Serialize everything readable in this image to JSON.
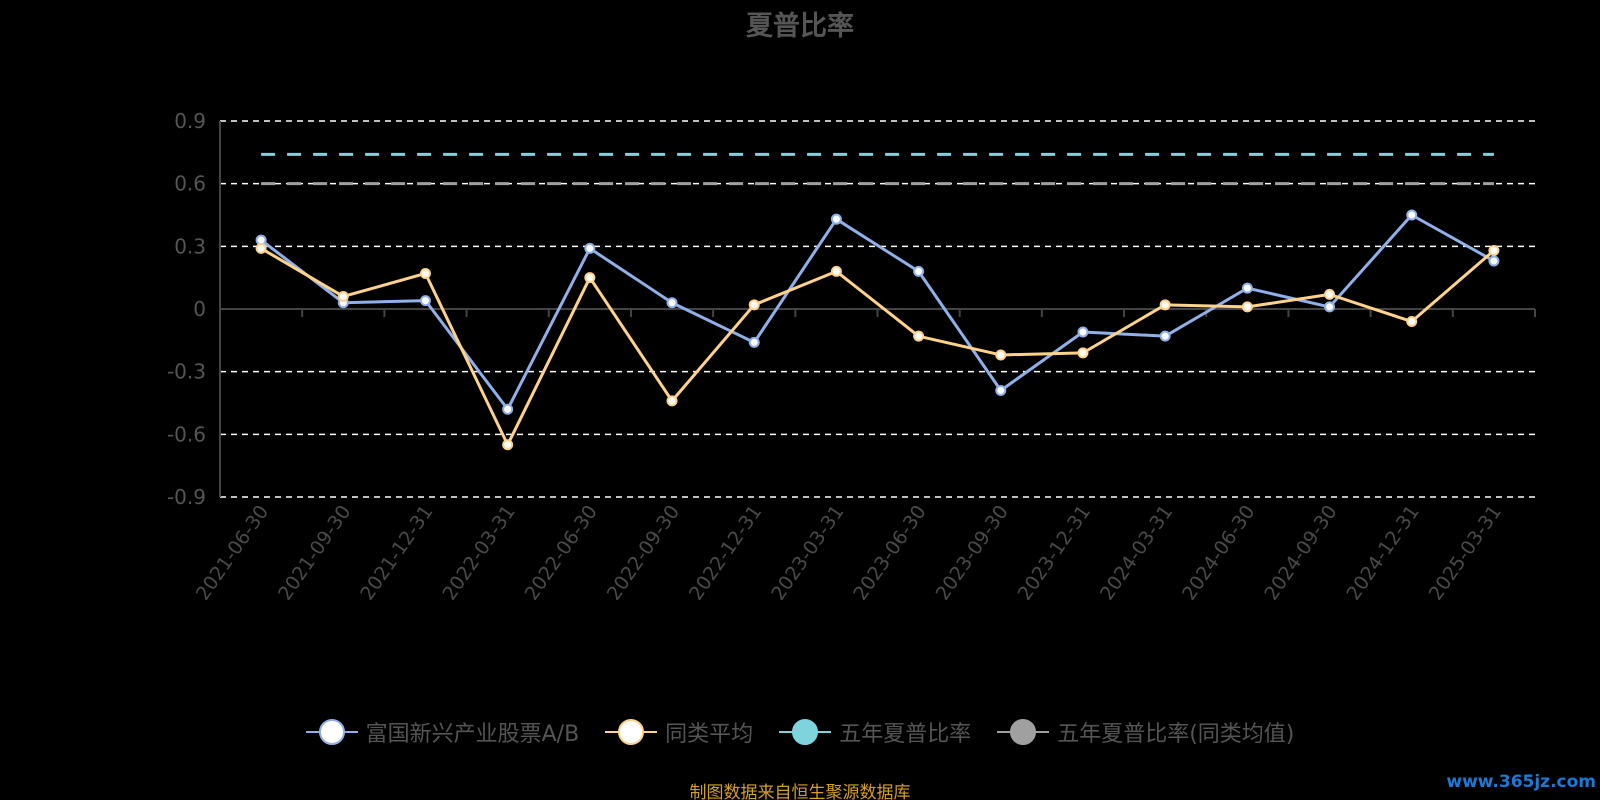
{
  "chart_data": {
    "type": "line",
    "title": "夏普比率",
    "categories": [
      "2021-06-30",
      "2021-09-30",
      "2021-12-31",
      "2022-03-31",
      "2022-06-30",
      "2022-09-30",
      "2022-12-31",
      "2023-03-31",
      "2023-06-30",
      "2023-09-30",
      "2023-12-31",
      "2024-03-31",
      "2024-06-30",
      "2024-09-30",
      "2024-12-31",
      "2025-03-31"
    ],
    "y_ticks": [
      0.9,
      0.6,
      0.3,
      0,
      -0.3,
      -0.6,
      -0.9
    ],
    "y_tick_labels": [
      "0.9",
      "0.6",
      "0.3",
      "0",
      "-0.3",
      "-0.6",
      "-0.9"
    ],
    "ylim": [
      -0.9,
      0.9
    ],
    "grid": true,
    "legend_position": "bottom",
    "series": [
      {
        "name": "富国新兴产业股票A/B",
        "values": [
          0.33,
          0.03,
          0.04,
          -0.48,
          0.29,
          0.03,
          -0.16,
          0.43,
          0.18,
          -0.39,
          -0.11,
          -0.13,
          0.1,
          0.01,
          0.45,
          0.23
        ],
        "color": "#8fb0e8",
        "style": "solid"
      },
      {
        "name": "同类平均",
        "values": [
          0.29,
          0.06,
          0.17,
          -0.65,
          0.15,
          -0.44,
          0.02,
          0.18,
          -0.13,
          -0.22,
          -0.21,
          0.02,
          0.01,
          0.07,
          -0.06,
          0.28
        ],
        "color": "#ffd28a",
        "style": "solid"
      },
      {
        "name": "五年夏普比率",
        "values": [
          0.74,
          0.74,
          0.74,
          0.74,
          0.74,
          0.74,
          0.74,
          0.74,
          0.74,
          0.74,
          0.74,
          0.74,
          0.74,
          0.74,
          0.74,
          0.74
        ],
        "color": "#7fd3dd",
        "style": "dashed"
      },
      {
        "name": "五年夏普比率(同类均值)",
        "values": [
          0.6,
          0.6,
          0.6,
          0.6,
          0.6,
          0.6,
          0.6,
          0.6,
          0.6,
          0.6,
          0.6,
          0.6,
          0.6,
          0.6,
          0.6,
          0.6
        ],
        "color": "#a0a0a0",
        "style": "dashed"
      }
    ]
  },
  "legend": [
    {
      "label": "富国新兴产业股票A/B",
      "color": "#8fb0e8",
      "fill": "#ffffff"
    },
    {
      "label": "同类平均",
      "color": "#ffd28a",
      "fill": "#ffffff"
    },
    {
      "label": "五年夏普比率",
      "color": "#7fd3dd",
      "fill": "#7fd3dd"
    },
    {
      "label": "五年夏普比率(同类均值)",
      "color": "#a0a0a0",
      "fill": "#a0a0a0"
    }
  ],
  "source_note": "制图数据来自恒生聚源数据库",
  "watermark": "www.365jz.com"
}
